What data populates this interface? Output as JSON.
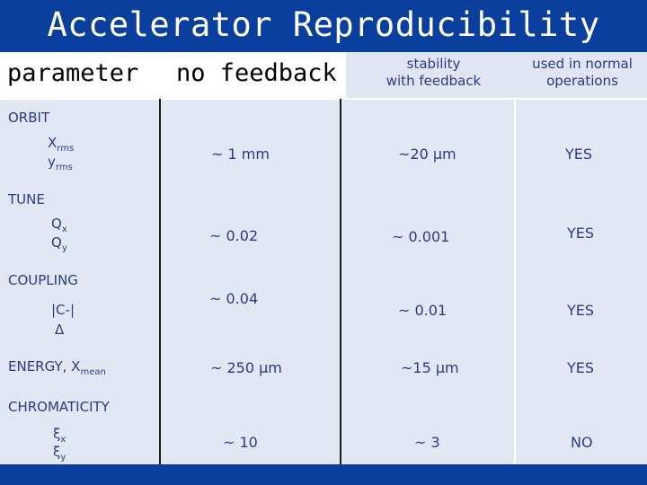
{
  "title": "Accelerator Reproducibility",
  "header": {
    "parameter": "parameter",
    "no_feedback": "no feedback",
    "stability_line1": "stability",
    "stability_line2": "with feedback",
    "used_line1": "used in normal",
    "used_line2": "operations"
  },
  "rows": [
    {
      "section": "ORBIT",
      "p1_main": "X",
      "p1_sub": "rms",
      "p2_main": "y",
      "p2_sub": "rms",
      "no_feedback": "~ 1 mm",
      "with_feedback": "~20 µm",
      "used": "YES"
    },
    {
      "section": "TUNE",
      "p1_main": "Q",
      "p1_sub": "x",
      "p2_main": "Q",
      "p2_sub": "y",
      "no_feedback": "~ 0.02",
      "with_feedback": "~ 0.001",
      "used": "YES"
    },
    {
      "section": "COUPLING",
      "p1_main": "|C-|",
      "p2_main": "Δ",
      "no_feedback": "~ 0.04",
      "with_feedback": "~ 0.01",
      "used": "YES"
    },
    {
      "section_main": "ENERGY, X",
      "section_sub": "mean",
      "no_feedback": "~ 250 µm",
      "with_feedback": "~15 µm",
      "used": "YES"
    },
    {
      "section": "CHROMATICITY",
      "p1_main": "ξ",
      "p1_sub": "x",
      "p2_main": "ξ",
      "p2_sub": "y",
      "no_feedback": "~ 10",
      "with_feedback": "~ 3",
      "used": "NO"
    }
  ]
}
